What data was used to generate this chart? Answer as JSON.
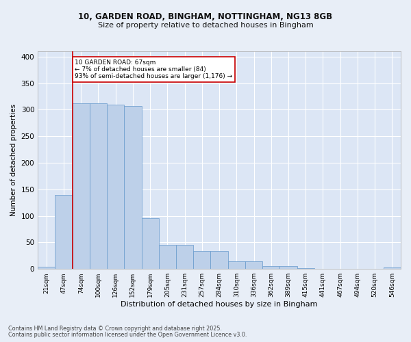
{
  "title_line1": "10, GARDEN ROAD, BINGHAM, NOTTINGHAM, NG13 8GB",
  "title_line2": "Size of property relative to detached houses in Bingham",
  "xlabel": "Distribution of detached houses by size in Bingham",
  "ylabel": "Number of detached properties",
  "categories": [
    "21sqm",
    "47sqm",
    "74sqm",
    "100sqm",
    "126sqm",
    "152sqm",
    "179sqm",
    "205sqm",
    "231sqm",
    "257sqm",
    "284sqm",
    "310sqm",
    "336sqm",
    "362sqm",
    "389sqm",
    "415sqm",
    "441sqm",
    "467sqm",
    "494sqm",
    "520sqm",
    "546sqm"
  ],
  "values": [
    4,
    140,
    312,
    312,
    310,
    307,
    95,
    46,
    45,
    34,
    34,
    15,
    15,
    6,
    6,
    2,
    0,
    0,
    0,
    0,
    3
  ],
  "bar_color": "#bdd0e9",
  "bar_edge_color": "#6699cc",
  "red_line_x": 1.5,
  "annotation_text": "10 GARDEN ROAD: 67sqm\n← 7% of detached houses are smaller (84)\n93% of semi-detached houses are larger (1,176) →",
  "annotation_box_color": "#ffffff",
  "annotation_box_edge": "#cc0000",
  "red_line_color": "#cc0000",
  "background_color": "#e8eef7",
  "plot_bg_color": "#dce6f5",
  "grid_color": "#ffffff",
  "footnote_line1": "Contains HM Land Registry data © Crown copyright and database right 2025.",
  "footnote_line2": "Contains public sector information licensed under the Open Government Licence v3.0.",
  "ylim": [
    0,
    410
  ],
  "yticks": [
    0,
    50,
    100,
    150,
    200,
    250,
    300,
    350,
    400
  ]
}
